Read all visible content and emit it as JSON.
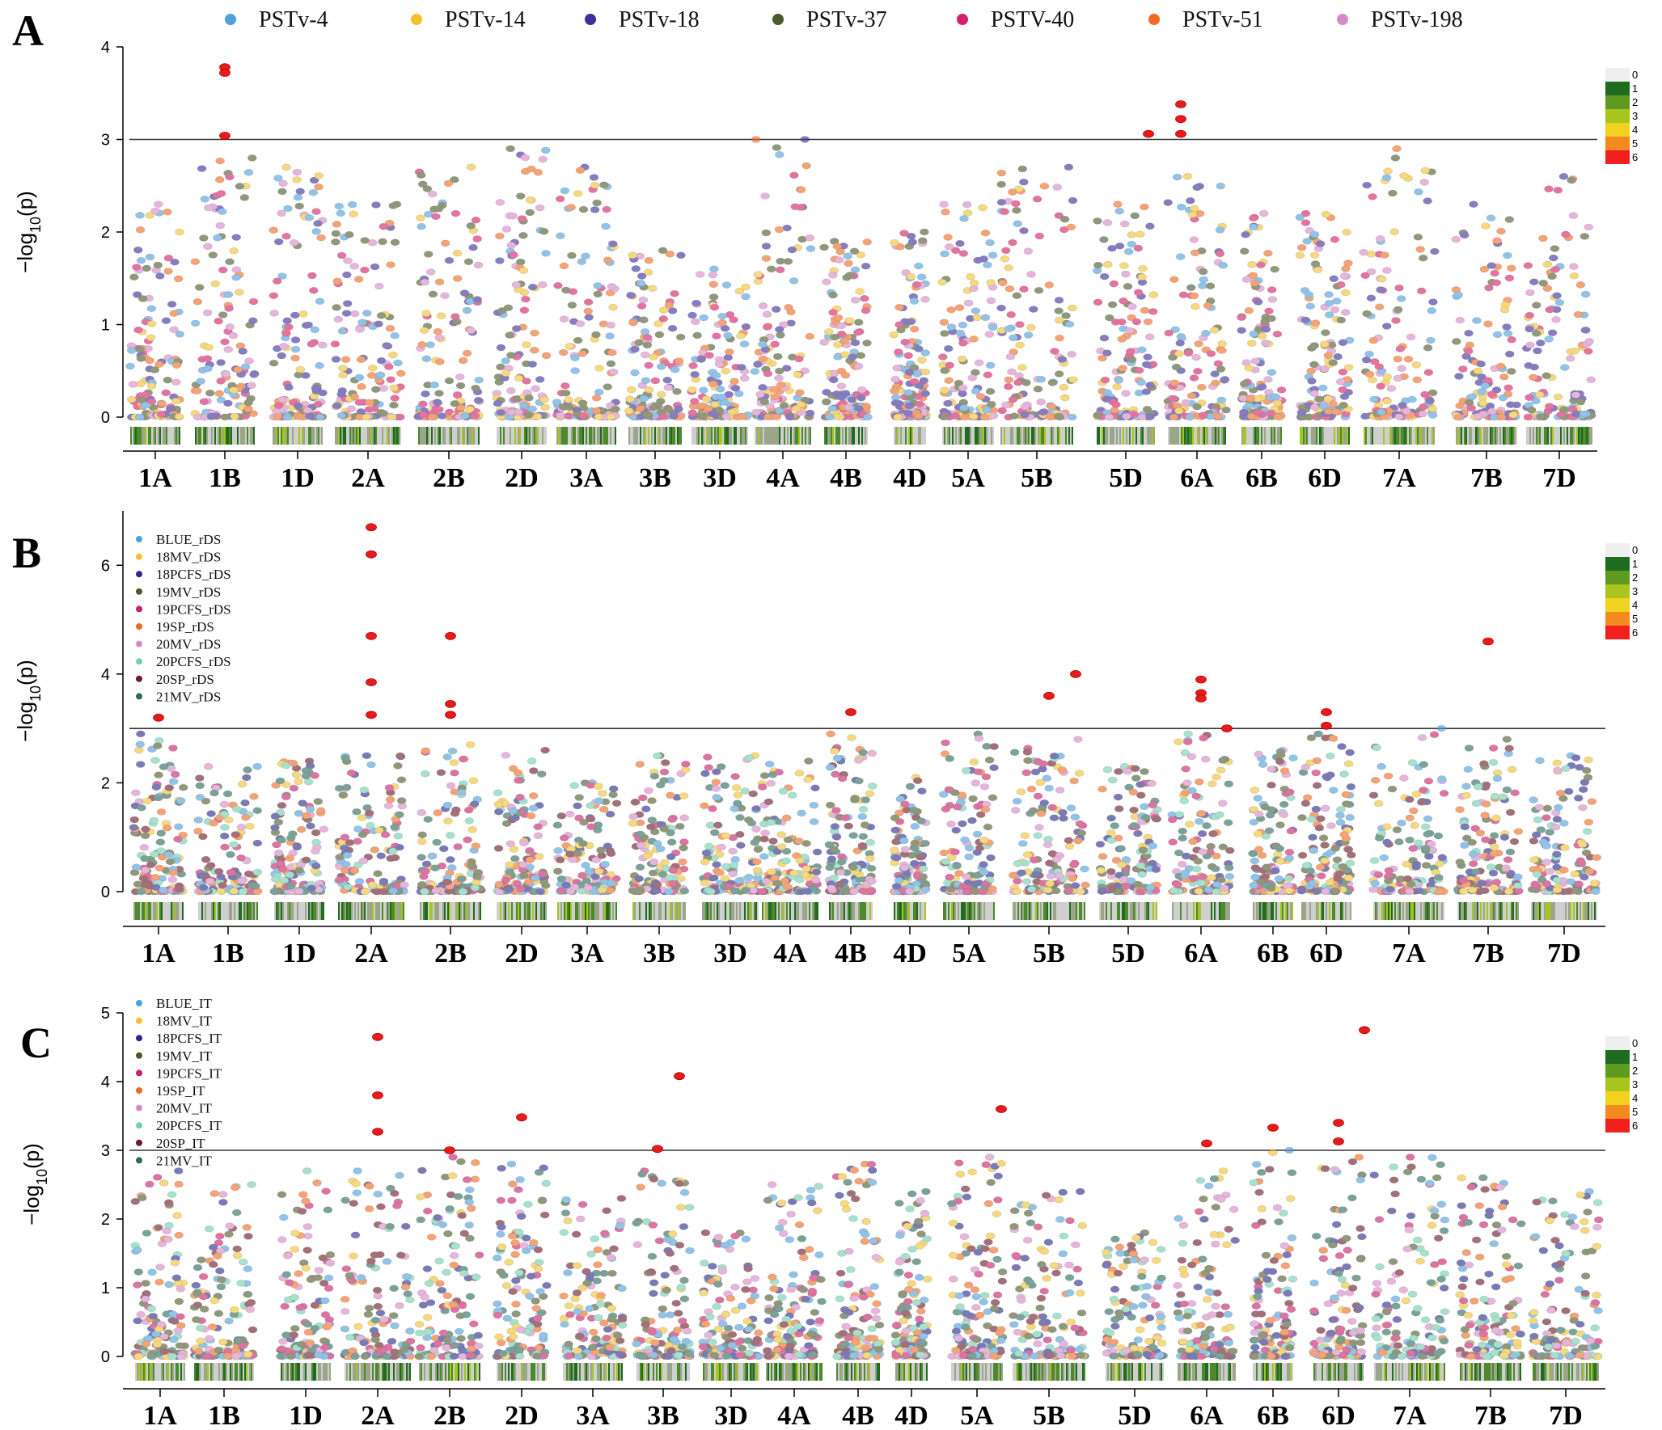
{
  "figure": {
    "colors": {
      "PSTv-4": "#4e9fdc",
      "PSTv-14": "#f2c12e",
      "PSTv-18": "#3b2f9a",
      "PSTv-37": "#4b5a2a",
      "PSTV-40": "#d41f6a",
      "PSTv-51": "#ef6b22",
      "PSTv-198": "#d889c8",
      "BLUE": "#4e9fdc",
      "18MV": "#f2c12e",
      "18PCFS": "#2a2a8a",
      "19MV": "#4b5a2a",
      "19PCFS": "#c81f6a",
      "19SP": "#ef6b22",
      "20MV": "#d889c8",
      "20PCFS": "#6fd0b0",
      "20SP": "#6b1a2a",
      "21MV": "#2a6a5a",
      "significant": "#e51c1c",
      "threshold_line": "#333333"
    },
    "colorbar": {
      "levels": [
        "0",
        "1",
        "2",
        "3",
        "4",
        "5",
        "6"
      ],
      "colors": [
        "#eeeeee",
        "#1f6b1f",
        "#5e9a1f",
        "#a7c41f",
        "#f2d21f",
        "#f28a1f",
        "#f21f1f"
      ]
    }
  },
  "chart_data": [
    {
      "panel": "A",
      "type": "scatter",
      "subtype": "manhattan",
      "ylabel": "-log10(p)",
      "ylim": [
        0,
        4
      ],
      "yticks": [
        "0",
        "1",
        "2",
        "3",
        "4"
      ],
      "threshold": 3,
      "chromosomes": [
        "1A",
        "1B",
        "1D",
        "2A",
        "2B",
        "2D",
        "3A",
        "3B",
        "3D",
        "4A",
        "4B",
        "4D",
        "5A",
        "5B",
        "5D",
        "6A",
        "6B",
        "6D",
        "7A",
        "7B",
        "7D"
      ],
      "legend": [
        "PSTv-4",
        "PSTv-14",
        "PSTv-18",
        "PSTv-37",
        "PSTV-40",
        "PSTv-51",
        "PSTv-198"
      ],
      "significant_points": [
        {
          "chr": "1B",
          "y": 3.78
        },
        {
          "chr": "1B",
          "y": 3.72
        },
        {
          "chr": "1B",
          "y": 3.04
        },
        {
          "chr": "5D",
          "y": 3.06
        },
        {
          "chr": "6A",
          "y": 3.38
        },
        {
          "chr": "6A",
          "y": 3.22
        },
        {
          "chr": "6A",
          "y": 3.06
        }
      ],
      "peak_max_per_chr": [
        2.3,
        2.8,
        2.7,
        2.3,
        2.7,
        2.9,
        2.7,
        1.8,
        1.6,
        3.0,
        1.9,
        2.0,
        2.3,
        2.7,
        2.3,
        2.6,
        2.2,
        2.2,
        2.9,
        2.3,
        2.6
      ]
    },
    {
      "panel": "B",
      "type": "scatter",
      "subtype": "manhattan",
      "ylabel": "-log10(p)",
      "ylim": [
        0,
        7
      ],
      "yticks": [
        "0",
        "2",
        "4",
        "6"
      ],
      "threshold": 3,
      "chromosomes": [
        "1A",
        "1B",
        "1D",
        "2A",
        "2B",
        "2D",
        "3A",
        "3B",
        "3D",
        "4A",
        "4B",
        "4D",
        "5A",
        "5B",
        "5D",
        "6A",
        "6B",
        "6D",
        "7A",
        "7B",
        "7D"
      ],
      "legend": [
        "BLUE_rDS",
        "18MV_rDS",
        "18PCFS_rDS",
        "19MV_rDS",
        "19PCFS_rDS",
        "19SP_rDS",
        "20MV_rDS",
        "20PCFS_rDS",
        "20SP_rDS",
        "21MV_rDS"
      ],
      "significant_points": [
        {
          "chr": "1A",
          "y": 3.2
        },
        {
          "chr": "2A",
          "y": 6.7
        },
        {
          "chr": "2A",
          "y": 6.2
        },
        {
          "chr": "2A",
          "y": 4.7
        },
        {
          "chr": "2A",
          "y": 3.85
        },
        {
          "chr": "2A",
          "y": 3.25
        },
        {
          "chr": "2B",
          "y": 4.7
        },
        {
          "chr": "2B",
          "y": 3.45
        },
        {
          "chr": "2B",
          "y": 3.25
        },
        {
          "chr": "4B",
          "y": 3.3
        },
        {
          "chr": "5B",
          "y": 3.6
        },
        {
          "chr": "5B",
          "y": 4.0
        },
        {
          "chr": "6A",
          "y": 3.9
        },
        {
          "chr": "6A",
          "y": 3.65
        },
        {
          "chr": "6A",
          "y": 3.55
        },
        {
          "chr": "6A",
          "y": 3.0
        },
        {
          "chr": "6D",
          "y": 3.3
        },
        {
          "chr": "6D",
          "y": 3.05
        },
        {
          "chr": "7B",
          "y": 4.6
        }
      ],
      "peak_max_per_chr": [
        2.9,
        2.3,
        2.4,
        2.5,
        2.7,
        2.6,
        2.0,
        2.5,
        2.5,
        2.4,
        2.9,
        2.1,
        2.9,
        2.8,
        2.3,
        2.9,
        2.6,
        2.9,
        3.0,
        2.8,
        2.5
      ]
    },
    {
      "panel": "C",
      "type": "scatter",
      "subtype": "manhattan",
      "ylabel": "-log10(p)",
      "ylim": [
        0,
        5
      ],
      "yticks": [
        "0",
        "1",
        "2",
        "3",
        "4",
        "5"
      ],
      "threshold": 3,
      "chromosomes": [
        "1A",
        "1B",
        "1D",
        "2A",
        "2B",
        "2D",
        "3A",
        "3B",
        "3D",
        "4A",
        "4B",
        "4D",
        "5A",
        "5B",
        "5D",
        "6A",
        "6B",
        "6D",
        "7A",
        "7B",
        "7D"
      ],
      "legend": [
        "BLUE_IT",
        "18MV_IT",
        "18PCFS_IT",
        "19MV_IT",
        "19PCFS_IT",
        "19SP_IT",
        "20MV_IT",
        "20PCFS_IT",
        "20SP_IT",
        "21MV_IT"
      ],
      "significant_points": [
        {
          "chr": "2A",
          "y": 4.65
        },
        {
          "chr": "2A",
          "y": 3.8
        },
        {
          "chr": "2A",
          "y": 3.27
        },
        {
          "chr": "2B",
          "y": 3.0
        },
        {
          "chr": "2D",
          "y": 3.48
        },
        {
          "chr": "3B",
          "y": 4.08
        },
        {
          "chr": "3B",
          "y": 3.02
        },
        {
          "chr": "5A",
          "y": 3.6
        },
        {
          "chr": "6A",
          "y": 3.1
        },
        {
          "chr": "6B",
          "y": 3.33
        },
        {
          "chr": "6D",
          "y": 3.4
        },
        {
          "chr": "6D",
          "y": 3.13
        },
        {
          "chr": "6D",
          "y": 4.75
        }
      ],
      "peak_max_per_chr": [
        2.7,
        2.5,
        2.7,
        2.7,
        2.9,
        2.8,
        2.3,
        2.7,
        1.8,
        2.5,
        2.8,
        2.4,
        2.9,
        2.4,
        1.8,
        2.7,
        3.0,
        2.9,
        2.9,
        2.6,
        2.4
      ]
    }
  ]
}
